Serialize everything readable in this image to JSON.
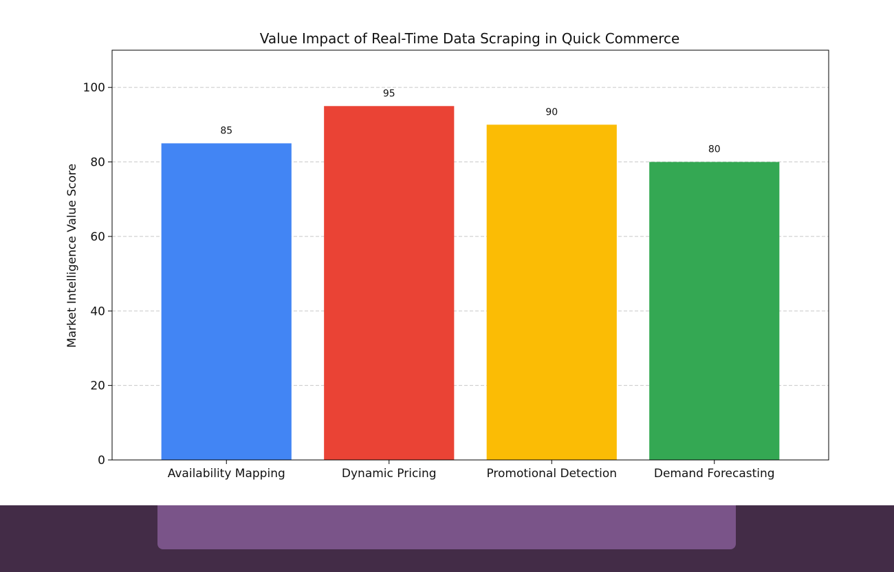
{
  "chart_data": {
    "type": "bar",
    "title": "Value Impact of Real-Time Data Scraping in Quick Commerce",
    "xlabel": "",
    "ylabel": "Market Intelligence Value Score",
    "categories": [
      "Availability Mapping",
      "Dynamic Pricing",
      "Promotional Detection",
      "Demand Forecasting"
    ],
    "values": [
      85,
      95,
      90,
      80
    ],
    "data_labels": [
      "85",
      "95",
      "90",
      "80"
    ],
    "colors": [
      "#4285f4",
      "#ea4335",
      "#fbbc05",
      "#34a853"
    ],
    "ylim": [
      0,
      110
    ],
    "yticks": [
      "0",
      "20",
      "40",
      "60",
      "80",
      "100"
    ],
    "ytick_values": [
      0,
      20,
      40,
      60,
      80,
      100
    ],
    "grid": true,
    "grid_axis": "y",
    "legend": false
  },
  "theme": {
    "footer_band": "#432c47",
    "footer_pill": "#7a5489"
  }
}
